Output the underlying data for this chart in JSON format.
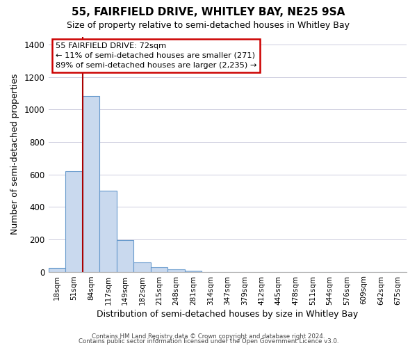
{
  "title": "55, FAIRFIELD DRIVE, WHITLEY BAY, NE25 9SA",
  "subtitle": "Size of property relative to semi-detached houses in Whitley Bay",
  "xlabel": "Distribution of semi-detached houses by size in Whitley Bay",
  "ylabel": "Number of semi-detached properties",
  "bin_labels": [
    "18sqm",
    "51sqm",
    "84sqm",
    "117sqm",
    "149sqm",
    "182sqm",
    "215sqm",
    "248sqm",
    "281sqm",
    "314sqm",
    "347sqm",
    "379sqm",
    "412sqm",
    "445sqm",
    "478sqm",
    "511sqm",
    "544sqm",
    "576sqm",
    "609sqm",
    "642sqm",
    "675sqm"
  ],
  "bin_values": [
    25,
    620,
    1085,
    500,
    195,
    60,
    27,
    14,
    7,
    0,
    0,
    0,
    0,
    0,
    0,
    0,
    0,
    0,
    0,
    0,
    0
  ],
  "bar_color": "#c9d9ee",
  "bar_edge_color": "#6699cc",
  "vline_color": "#aa0000",
  "vline_x_idx": 1.5,
  "ylim": [
    0,
    1450
  ],
  "yticks": [
    0,
    200,
    400,
    600,
    800,
    1000,
    1200,
    1400
  ],
  "annotation_title": "55 FAIRFIELD DRIVE: 72sqm",
  "annotation_line1": "← 11% of semi-detached houses are smaller (271)",
  "annotation_line2": "89% of semi-detached houses are larger (2,235) →",
  "annotation_box_facecolor": "#ffffff",
  "annotation_box_edgecolor": "#cc0000",
  "footer_line1": "Contains HM Land Registry data © Crown copyright and database right 2024.",
  "footer_line2": "Contains public sector information licensed under the Open Government Licence v3.0.",
  "fig_facecolor": "#ffffff",
  "plot_facecolor": "#ffffff",
  "grid_color": "#ccccdd",
  "title_fontsize": 11,
  "subtitle_fontsize": 9
}
